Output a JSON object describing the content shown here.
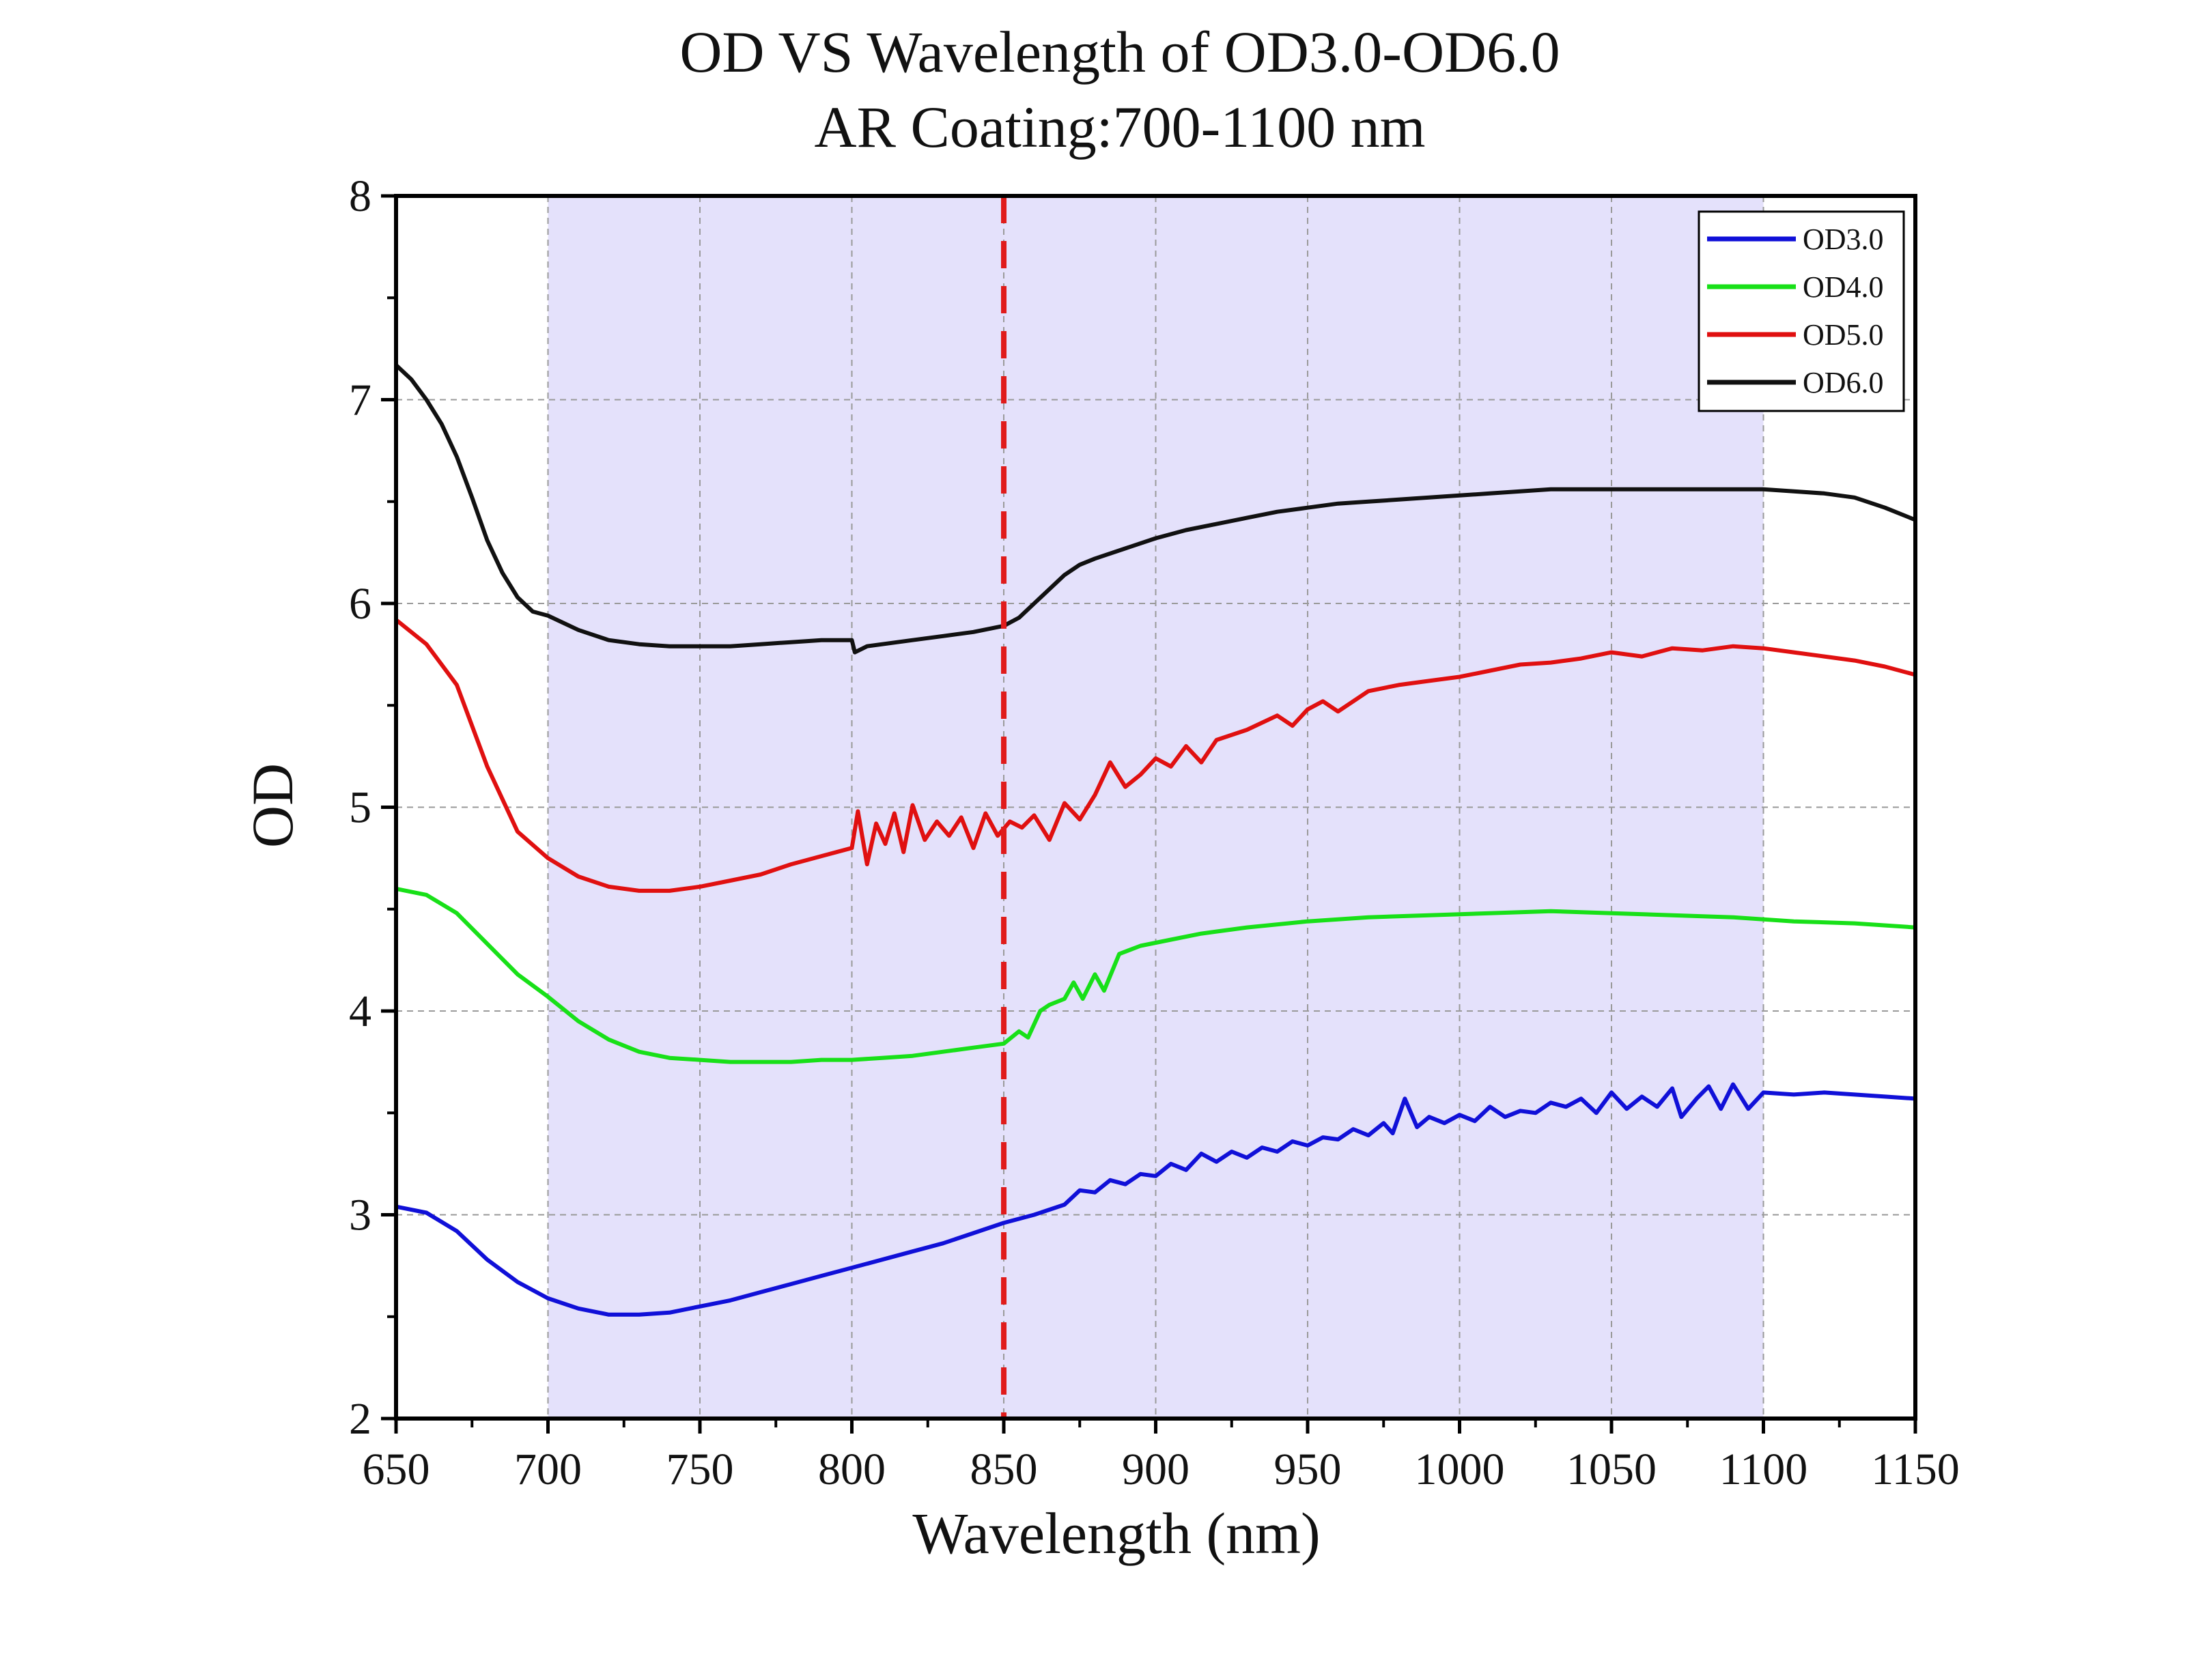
{
  "chart_data": {
    "type": "line",
    "title": "OD VS Wavelength of OD3.0-OD6.0",
    "subtitle": "AR Coating:700-1100 nm",
    "xlabel": "Wavelength (nm)",
    "ylabel": "OD",
    "xlim": [
      650,
      1150
    ],
    "ylim": [
      2,
      8
    ],
    "x_ticks": [
      "650",
      "700",
      "750",
      "800",
      "850",
      "900",
      "950",
      "1000",
      "1050",
      "1100",
      "1150"
    ],
    "y_ticks": [
      "2",
      "3",
      "4",
      "5",
      "6",
      "7",
      "8"
    ],
    "grid": true,
    "legend_position": "top-right",
    "shaded_region": {
      "x_start": 700,
      "x_end": 1100,
      "color": "#e4e1fb"
    },
    "reference_line": {
      "x": 850,
      "color": "#e01b1b",
      "style": "dashed"
    },
    "series": [
      {
        "name": "OD3.0",
        "color": "#1010d8",
        "points": [
          [
            650,
            3.04
          ],
          [
            660,
            3.01
          ],
          [
            670,
            2.92
          ],
          [
            680,
            2.78
          ],
          [
            690,
            2.67
          ],
          [
            700,
            2.59
          ],
          [
            710,
            2.54
          ],
          [
            720,
            2.51
          ],
          [
            730,
            2.51
          ],
          [
            740,
            2.52
          ],
          [
            750,
            2.55
          ],
          [
            760,
            2.58
          ],
          [
            770,
            2.62
          ],
          [
            780,
            2.66
          ],
          [
            790,
            2.7
          ],
          [
            800,
            2.74
          ],
          [
            810,
            2.78
          ],
          [
            820,
            2.82
          ],
          [
            830,
            2.86
          ],
          [
            840,
            2.91
          ],
          [
            850,
            2.96
          ],
          [
            860,
            3.0
          ],
          [
            870,
            3.05
          ],
          [
            875,
            3.12
          ],
          [
            880,
            3.11
          ],
          [
            885,
            3.17
          ],
          [
            890,
            3.15
          ],
          [
            895,
            3.2
          ],
          [
            900,
            3.19
          ],
          [
            905,
            3.25
          ],
          [
            910,
            3.22
          ],
          [
            915,
            3.3
          ],
          [
            920,
            3.26
          ],
          [
            925,
            3.31
          ],
          [
            930,
            3.28
          ],
          [
            935,
            3.33
          ],
          [
            940,
            3.31
          ],
          [
            945,
            3.36
          ],
          [
            950,
            3.34
          ],
          [
            955,
            3.38
          ],
          [
            960,
            3.37
          ],
          [
            965,
            3.42
          ],
          [
            970,
            3.39
          ],
          [
            975,
            3.45
          ],
          [
            978,
            3.4
          ],
          [
            982,
            3.57
          ],
          [
            986,
            3.43
          ],
          [
            990,
            3.48
          ],
          [
            995,
            3.45
          ],
          [
            1000,
            3.49
          ],
          [
            1005,
            3.46
          ],
          [
            1010,
            3.53
          ],
          [
            1015,
            3.48
          ],
          [
            1020,
            3.51
          ],
          [
            1025,
            3.5
          ],
          [
            1030,
            3.55
          ],
          [
            1035,
            3.53
          ],
          [
            1040,
            3.57
          ],
          [
            1045,
            3.5
          ],
          [
            1050,
            3.6
          ],
          [
            1055,
            3.52
          ],
          [
            1060,
            3.58
          ],
          [
            1065,
            3.53
          ],
          [
            1070,
            3.62
          ],
          [
            1073,
            3.48
          ],
          [
            1078,
            3.57
          ],
          [
            1082,
            3.63
          ],
          [
            1086,
            3.52
          ],
          [
            1090,
            3.64
          ],
          [
            1095,
            3.52
          ],
          [
            1100,
            3.6
          ],
          [
            1110,
            3.59
          ],
          [
            1120,
            3.6
          ],
          [
            1130,
            3.59
          ],
          [
            1140,
            3.58
          ],
          [
            1150,
            3.57
          ]
        ]
      },
      {
        "name": "OD4.0",
        "color": "#18e018",
        "points": [
          [
            650,
            4.6
          ],
          [
            660,
            4.57
          ],
          [
            670,
            4.48
          ],
          [
            680,
            4.33
          ],
          [
            690,
            4.18
          ],
          [
            700,
            4.07
          ],
          [
            710,
            3.95
          ],
          [
            720,
            3.86
          ],
          [
            730,
            3.8
          ],
          [
            740,
            3.77
          ],
          [
            750,
            3.76
          ],
          [
            760,
            3.75
          ],
          [
            770,
            3.75
          ],
          [
            780,
            3.75
          ],
          [
            790,
            3.76
          ],
          [
            800,
            3.76
          ],
          [
            810,
            3.77
          ],
          [
            820,
            3.78
          ],
          [
            830,
            3.8
          ],
          [
            840,
            3.82
          ],
          [
            850,
            3.84
          ],
          [
            855,
            3.9
          ],
          [
            858,
            3.87
          ],
          [
            862,
            4.0
          ],
          [
            865,
            4.03
          ],
          [
            870,
            4.06
          ],
          [
            873,
            4.14
          ],
          [
            876,
            4.06
          ],
          [
            880,
            4.18
          ],
          [
            883,
            4.1
          ],
          [
            888,
            4.28
          ],
          [
            895,
            4.32
          ],
          [
            905,
            4.35
          ],
          [
            915,
            4.38
          ],
          [
            930,
            4.41
          ],
          [
            950,
            4.44
          ],
          [
            970,
            4.46
          ],
          [
            990,
            4.47
          ],
          [
            1010,
            4.48
          ],
          [
            1030,
            4.49
          ],
          [
            1050,
            4.48
          ],
          [
            1070,
            4.47
          ],
          [
            1090,
            4.46
          ],
          [
            1110,
            4.44
          ],
          [
            1130,
            4.43
          ],
          [
            1150,
            4.41
          ]
        ]
      },
      {
        "name": "OD5.0",
        "color": "#e01010",
        "points": [
          [
            650,
            5.92
          ],
          [
            660,
            5.8
          ],
          [
            670,
            5.6
          ],
          [
            680,
            5.2
          ],
          [
            690,
            4.88
          ],
          [
            700,
            4.75
          ],
          [
            710,
            4.66
          ],
          [
            720,
            4.61
          ],
          [
            730,
            4.59
          ],
          [
            740,
            4.59
          ],
          [
            750,
            4.61
          ],
          [
            760,
            4.64
          ],
          [
            770,
            4.67
          ],
          [
            780,
            4.72
          ],
          [
            790,
            4.76
          ],
          [
            800,
            4.8
          ],
          [
            802,
            4.98
          ],
          [
            805,
            4.72
          ],
          [
            808,
            4.92
          ],
          [
            811,
            4.82
          ],
          [
            814,
            4.97
          ],
          [
            817,
            4.78
          ],
          [
            820,
            5.01
          ],
          [
            824,
            4.84
          ],
          [
            828,
            4.93
          ],
          [
            832,
            4.86
          ],
          [
            836,
            4.95
          ],
          [
            840,
            4.8
          ],
          [
            844,
            4.97
          ],
          [
            848,
            4.86
          ],
          [
            852,
            4.93
          ],
          [
            856,
            4.9
          ],
          [
            860,
            4.96
          ],
          [
            865,
            4.84
          ],
          [
            870,
            5.02
          ],
          [
            875,
            4.94
          ],
          [
            880,
            5.06
          ],
          [
            885,
            5.22
          ],
          [
            890,
            5.1
          ],
          [
            895,
            5.16
          ],
          [
            900,
            5.24
          ],
          [
            905,
            5.2
          ],
          [
            910,
            5.3
          ],
          [
            915,
            5.22
          ],
          [
            920,
            5.33
          ],
          [
            930,
            5.38
          ],
          [
            940,
            5.45
          ],
          [
            945,
            5.4
          ],
          [
            950,
            5.48
          ],
          [
            955,
            5.52
          ],
          [
            960,
            5.47
          ],
          [
            970,
            5.57
          ],
          [
            980,
            5.6
          ],
          [
            990,
            5.62
          ],
          [
            1000,
            5.64
          ],
          [
            1010,
            5.67
          ],
          [
            1020,
            5.7
          ],
          [
            1030,
            5.71
          ],
          [
            1040,
            5.73
          ],
          [
            1050,
            5.76
          ],
          [
            1060,
            5.74
          ],
          [
            1070,
            5.78
          ],
          [
            1080,
            5.77
          ],
          [
            1090,
            5.79
          ],
          [
            1100,
            5.78
          ],
          [
            1110,
            5.76
          ],
          [
            1120,
            5.74
          ],
          [
            1130,
            5.72
          ],
          [
            1140,
            5.69
          ],
          [
            1150,
            5.65
          ]
        ]
      },
      {
        "name": "OD6.0",
        "color": "#111111",
        "points": [
          [
            650,
            7.17
          ],
          [
            655,
            7.1
          ],
          [
            660,
            7.0
          ],
          [
            665,
            6.88
          ],
          [
            670,
            6.72
          ],
          [
            675,
            6.52
          ],
          [
            680,
            6.31
          ],
          [
            685,
            6.15
          ],
          [
            690,
            6.03
          ],
          [
            695,
            5.96
          ],
          [
            700,
            5.94
          ],
          [
            710,
            5.87
          ],
          [
            720,
            5.82
          ],
          [
            730,
            5.8
          ],
          [
            740,
            5.79
          ],
          [
            750,
            5.79
          ],
          [
            760,
            5.79
          ],
          [
            770,
            5.8
          ],
          [
            780,
            5.81
          ],
          [
            790,
            5.82
          ],
          [
            800,
            5.82
          ],
          [
            801,
            5.76
          ],
          [
            805,
            5.79
          ],
          [
            810,
            5.8
          ],
          [
            820,
            5.82
          ],
          [
            830,
            5.84
          ],
          [
            840,
            5.86
          ],
          [
            850,
            5.89
          ],
          [
            855,
            5.93
          ],
          [
            860,
            6.0
          ],
          [
            865,
            6.07
          ],
          [
            870,
            6.14
          ],
          [
            875,
            6.19
          ],
          [
            880,
            6.22
          ],
          [
            890,
            6.27
          ],
          [
            900,
            6.32
          ],
          [
            910,
            6.36
          ],
          [
            920,
            6.39
          ],
          [
            930,
            6.42
          ],
          [
            940,
            6.45
          ],
          [
            950,
            6.47
          ],
          [
            960,
            6.49
          ],
          [
            970,
            6.5
          ],
          [
            980,
            6.51
          ],
          [
            990,
            6.52
          ],
          [
            1000,
            6.53
          ],
          [
            1010,
            6.54
          ],
          [
            1020,
            6.55
          ],
          [
            1030,
            6.56
          ],
          [
            1040,
            6.56
          ],
          [
            1050,
            6.56
          ],
          [
            1060,
            6.56
          ],
          [
            1070,
            6.56
          ],
          [
            1080,
            6.56
          ],
          [
            1090,
            6.56
          ],
          [
            1100,
            6.56
          ],
          [
            1110,
            6.55
          ],
          [
            1120,
            6.54
          ],
          [
            1130,
            6.52
          ],
          [
            1140,
            6.47
          ],
          [
            1150,
            6.41
          ]
        ]
      }
    ]
  }
}
